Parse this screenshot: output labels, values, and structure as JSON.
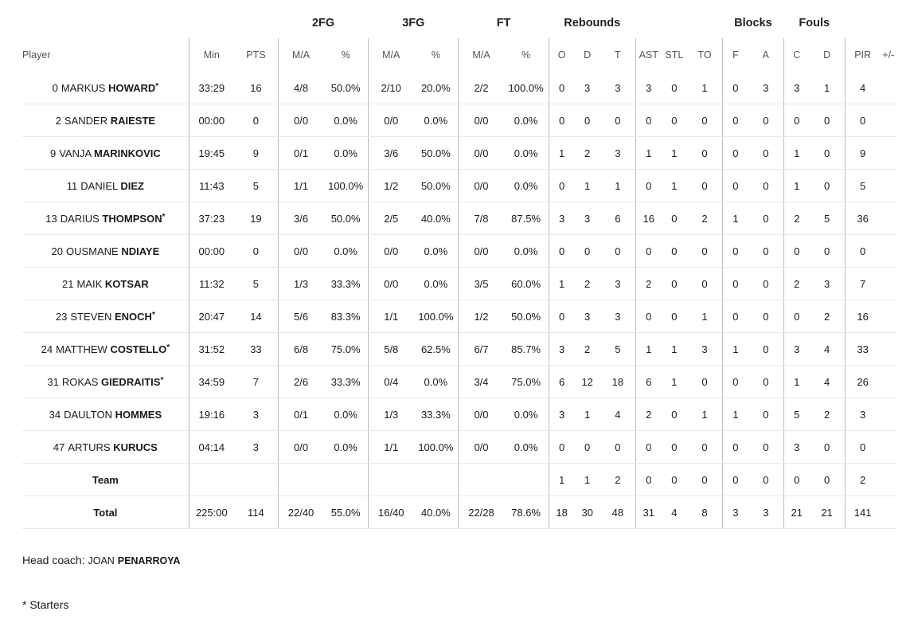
{
  "groups": {
    "fg2": "2FG",
    "fg3": "3FG",
    "ft": "FT",
    "reb": "Rebounds",
    "blk": "Blocks",
    "fouls": "Fouls"
  },
  "columns": {
    "player": "Player",
    "min": "Min",
    "pts": "PTS",
    "fg2_ma": "M/A",
    "fg2_pct": "%",
    "fg3_ma": "M/A",
    "fg3_pct": "%",
    "ft_ma": "M/A",
    "ft_pct": "%",
    "o": "O",
    "d": "D",
    "t": "T",
    "ast": "AST",
    "stl": "STL",
    "to": "TO",
    "bf": "F",
    "ba": "A",
    "fc": "C",
    "fd": "D",
    "pir": "PIR",
    "pm": "+/-"
  },
  "players": [
    {
      "num": "0",
      "first": "MARKUS",
      "last": "HOWARD",
      "starter": "*",
      "min": "33:29",
      "pts": "16",
      "fg2_ma": "4/8",
      "fg2_pct": "50.0%",
      "fg3_ma": "2/10",
      "fg3_pct": "20.0%",
      "ft_ma": "2/2",
      "ft_pct": "100.0%",
      "o": "0",
      "d": "3",
      "t": "3",
      "ast": "3",
      "stl": "0",
      "to": "1",
      "bf": "0",
      "ba": "3",
      "fc": "3",
      "fd": "1",
      "pir": "4",
      "pm": ""
    },
    {
      "num": "2",
      "first": "SANDER",
      "last": "RAIESTE",
      "starter": "",
      "min": "00:00",
      "pts": "0",
      "fg2_ma": "0/0",
      "fg2_pct": "0.0%",
      "fg3_ma": "0/0",
      "fg3_pct": "0.0%",
      "ft_ma": "0/0",
      "ft_pct": "0.0%",
      "o": "0",
      "d": "0",
      "t": "0",
      "ast": "0",
      "stl": "0",
      "to": "0",
      "bf": "0",
      "ba": "0",
      "fc": "0",
      "fd": "0",
      "pir": "0",
      "pm": ""
    },
    {
      "num": "9",
      "first": "VANJA",
      "last": "MARINKOVIC",
      "starter": "",
      "min": "19:45",
      "pts": "9",
      "fg2_ma": "0/1",
      "fg2_pct": "0.0%",
      "fg3_ma": "3/6",
      "fg3_pct": "50.0%",
      "ft_ma": "0/0",
      "ft_pct": "0.0%",
      "o": "1",
      "d": "2",
      "t": "3",
      "ast": "1",
      "stl": "1",
      "to": "0",
      "bf": "0",
      "ba": "0",
      "fc": "1",
      "fd": "0",
      "pir": "9",
      "pm": ""
    },
    {
      "num": "11",
      "first": "DANIEL",
      "last": "DIEZ",
      "starter": "",
      "min": "11:43",
      "pts": "5",
      "fg2_ma": "1/1",
      "fg2_pct": "100.0%",
      "fg3_ma": "1/2",
      "fg3_pct": "50.0%",
      "ft_ma": "0/0",
      "ft_pct": "0.0%",
      "o": "0",
      "d": "1",
      "t": "1",
      "ast": "0",
      "stl": "1",
      "to": "0",
      "bf": "0",
      "ba": "0",
      "fc": "1",
      "fd": "0",
      "pir": "5",
      "pm": ""
    },
    {
      "num": "13",
      "first": "DARIUS",
      "last": "THOMPSON",
      "starter": "*",
      "min": "37:23",
      "pts": "19",
      "fg2_ma": "3/6",
      "fg2_pct": "50.0%",
      "fg3_ma": "2/5",
      "fg3_pct": "40.0%",
      "ft_ma": "7/8",
      "ft_pct": "87.5%",
      "o": "3",
      "d": "3",
      "t": "6",
      "ast": "16",
      "stl": "0",
      "to": "2",
      "bf": "1",
      "ba": "0",
      "fc": "2",
      "fd": "5",
      "pir": "36",
      "pm": ""
    },
    {
      "num": "20",
      "first": "OUSMANE",
      "last": "NDIAYE",
      "starter": "",
      "min": "00:00",
      "pts": "0",
      "fg2_ma": "0/0",
      "fg2_pct": "0.0%",
      "fg3_ma": "0/0",
      "fg3_pct": "0.0%",
      "ft_ma": "0/0",
      "ft_pct": "0.0%",
      "o": "0",
      "d": "0",
      "t": "0",
      "ast": "0",
      "stl": "0",
      "to": "0",
      "bf": "0",
      "ba": "0",
      "fc": "0",
      "fd": "0",
      "pir": "0",
      "pm": ""
    },
    {
      "num": "21",
      "first": "MAIK",
      "last": "KOTSAR",
      "starter": "",
      "min": "11:32",
      "pts": "5",
      "fg2_ma": "1/3",
      "fg2_pct": "33.3%",
      "fg3_ma": "0/0",
      "fg3_pct": "0.0%",
      "ft_ma": "3/5",
      "ft_pct": "60.0%",
      "o": "1",
      "d": "2",
      "t": "3",
      "ast": "2",
      "stl": "0",
      "to": "0",
      "bf": "0",
      "ba": "0",
      "fc": "2",
      "fd": "3",
      "pir": "7",
      "pm": ""
    },
    {
      "num": "23",
      "first": "STEVEN",
      "last": "ENOCH",
      "starter": "*",
      "min": "20:47",
      "pts": "14",
      "fg2_ma": "5/6",
      "fg2_pct": "83.3%",
      "fg3_ma": "1/1",
      "fg3_pct": "100.0%",
      "ft_ma": "1/2",
      "ft_pct": "50.0%",
      "o": "0",
      "d": "3",
      "t": "3",
      "ast": "0",
      "stl": "0",
      "to": "1",
      "bf": "0",
      "ba": "0",
      "fc": "0",
      "fd": "2",
      "pir": "16",
      "pm": ""
    },
    {
      "num": "24",
      "first": "MATTHEW",
      "last": "COSTELLO",
      "starter": "*",
      "min": "31:52",
      "pts": "33",
      "fg2_ma": "6/8",
      "fg2_pct": "75.0%",
      "fg3_ma": "5/8",
      "fg3_pct": "62.5%",
      "ft_ma": "6/7",
      "ft_pct": "85.7%",
      "o": "3",
      "d": "2",
      "t": "5",
      "ast": "1",
      "stl": "1",
      "to": "3",
      "bf": "1",
      "ba": "0",
      "fc": "3",
      "fd": "4",
      "pir": "33",
      "pm": ""
    },
    {
      "num": "31",
      "first": "ROKAS",
      "last": "GIEDRAITIS",
      "starter": "*",
      "min": "34:59",
      "pts": "7",
      "fg2_ma": "2/6",
      "fg2_pct": "33.3%",
      "fg3_ma": "0/4",
      "fg3_pct": "0.0%",
      "ft_ma": "3/4",
      "ft_pct": "75.0%",
      "o": "6",
      "d": "12",
      "t": "18",
      "ast": "6",
      "stl": "1",
      "to": "0",
      "bf": "0",
      "ba": "0",
      "fc": "1",
      "fd": "4",
      "pir": "26",
      "pm": ""
    },
    {
      "num": "34",
      "first": "DAULTON",
      "last": "HOMMES",
      "starter": "",
      "min": "19:16",
      "pts": "3",
      "fg2_ma": "0/1",
      "fg2_pct": "0.0%",
      "fg3_ma": "1/3",
      "fg3_pct": "33.3%",
      "ft_ma": "0/0",
      "ft_pct": "0.0%",
      "o": "3",
      "d": "1",
      "t": "4",
      "ast": "2",
      "stl": "0",
      "to": "1",
      "bf": "1",
      "ba": "0",
      "fc": "5",
      "fd": "2",
      "pir": "3",
      "pm": ""
    },
    {
      "num": "47",
      "first": "ARTURS",
      "last": "KURUCS",
      "starter": "",
      "min": "04:14",
      "pts": "3",
      "fg2_ma": "0/0",
      "fg2_pct": "0.0%",
      "fg3_ma": "1/1",
      "fg3_pct": "100.0%",
      "ft_ma": "0/0",
      "ft_pct": "0.0%",
      "o": "0",
      "d": "0",
      "t": "0",
      "ast": "0",
      "stl": "0",
      "to": "0",
      "bf": "0",
      "ba": "0",
      "fc": "3",
      "fd": "0",
      "pir": "0",
      "pm": ""
    }
  ],
  "team": {
    "label": "Team",
    "min": "",
    "pts": "",
    "fg2_ma": "",
    "fg2_pct": "",
    "fg3_ma": "",
    "fg3_pct": "",
    "ft_ma": "",
    "ft_pct": "",
    "o": "1",
    "d": "1",
    "t": "2",
    "ast": "0",
    "stl": "0",
    "to": "0",
    "bf": "0",
    "ba": "0",
    "fc": "0",
    "fd": "0",
    "pir": "2",
    "pm": ""
  },
  "total": {
    "label": "Total",
    "min": "225:00",
    "pts": "114",
    "fg2_ma": "22/40",
    "fg2_pct": "55.0%",
    "fg3_ma": "16/40",
    "fg3_pct": "40.0%",
    "ft_ma": "22/28",
    "ft_pct": "78.6%",
    "o": "18",
    "d": "30",
    "t": "48",
    "ast": "31",
    "stl": "4",
    "to": "8",
    "bf": "3",
    "ba": "3",
    "fc": "21",
    "fd": "21",
    "pir": "141",
    "pm": ""
  },
  "coach": {
    "prefix": "Head coach:",
    "first": "JOAN",
    "last": "PENARROYA"
  },
  "footnote": "* Starters"
}
